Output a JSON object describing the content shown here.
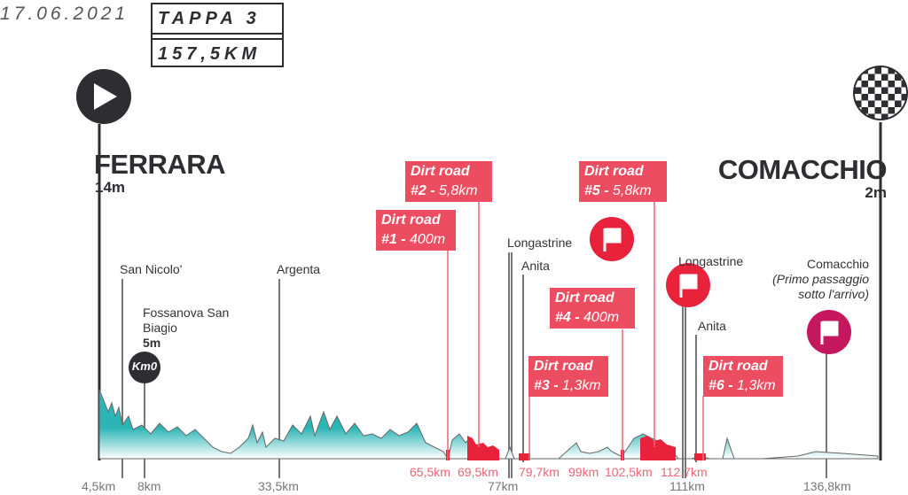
{
  "date": "17.06.2021",
  "stage": {
    "title": "TAPPA 3",
    "distance": "157,5KM"
  },
  "start": {
    "city": "FERRARA",
    "altitude": "14m",
    "icon": "play-icon"
  },
  "finish": {
    "city": "COMACCHIO",
    "altitude": "2m",
    "icon": "checkered-flag-icon"
  },
  "km0": {
    "label": "Km0"
  },
  "places": [
    {
      "name": "San Nicolo'"
    },
    {
      "name": "Fossanova San Biagio",
      "alt": "5m"
    },
    {
      "name": "Argenta"
    },
    {
      "name": "Longastrine"
    },
    {
      "name": "Anita"
    },
    {
      "name": "Longastrine"
    },
    {
      "name": "Anita"
    },
    {
      "name": "Comacchio",
      "note": "(Primo passaggio sotto l'arrivo)"
    }
  ],
  "dirt_roads": [
    {
      "title": "Dirt road",
      "num": "#1 -",
      "len": "400m",
      "km": "65,5km"
    },
    {
      "title": "Dirt road",
      "num": "#2 -",
      "len": "5,8km",
      "km": "69,5km"
    },
    {
      "title": "Dirt road",
      "num": "#3 -",
      "len": "1,3km",
      "km": "79,7km"
    },
    {
      "title": "Dirt road",
      "num": "#4 -",
      "len": "400m",
      "km": "99km"
    },
    {
      "title": "Dirt road",
      "num": "#5 -",
      "len": "5,8km",
      "km": "102,5km"
    },
    {
      "title": "Dirt road",
      "num": "#6 -",
      "len": "1,3km",
      "km": "112,7km"
    }
  ],
  "km_marks": [
    "4,5km",
    "8km",
    "33,5km",
    "77km",
    "111km",
    "136,8km"
  ],
  "colors": {
    "profile": "#2bb5b5",
    "dirt": "#ec4d60",
    "flag": "#e8223a",
    "flag2": "#c4175d",
    "dark": "#2d2d32"
  }
}
